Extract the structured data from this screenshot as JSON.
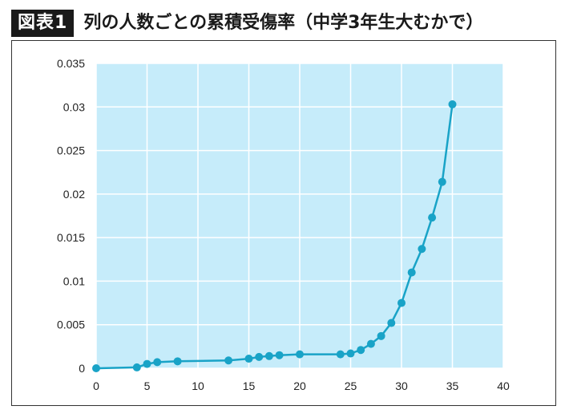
{
  "header": {
    "figure_label": "図表1",
    "title": "列の人数ごとの累積受傷率（中学3年生大むかで）"
  },
  "colors": {
    "plot_background": "#c6ecfa",
    "gridline": "#ffffff",
    "series": "#19a3c7",
    "frame": "#333333"
  },
  "chart_data": {
    "type": "line",
    "title": "列の人数ごとの累積受傷率（中学3年生大むかで）",
    "xlabel": "",
    "ylabel": "",
    "xlim": [
      0,
      40
    ],
    "ylim": [
      0,
      0.035
    ],
    "x_ticks": [
      "0",
      "5",
      "10",
      "15",
      "20",
      "25",
      "30",
      "35",
      "40"
    ],
    "y_ticks": [
      "0",
      "0.005",
      "0.01",
      "0.015",
      "0.02",
      "0.025",
      "0.03",
      "0.035"
    ],
    "grid": true,
    "legend": "none",
    "markers": true,
    "series": [
      {
        "x": [
          0,
          4,
          5,
          6,
          8,
          13,
          15,
          16,
          17,
          18,
          20,
          24,
          25,
          26,
          27,
          28,
          29,
          30,
          31,
          32,
          33,
          34,
          35
        ],
        "y": [
          0.0,
          0.0001,
          0.0005,
          0.0007,
          0.0008,
          0.0009,
          0.0011,
          0.0013,
          0.0014,
          0.0015,
          0.0016,
          0.0016,
          0.0017,
          0.0021,
          0.0028,
          0.0037,
          0.0052,
          0.0075,
          0.011,
          0.0137,
          0.0173,
          0.0214,
          0.0303
        ]
      }
    ]
  }
}
